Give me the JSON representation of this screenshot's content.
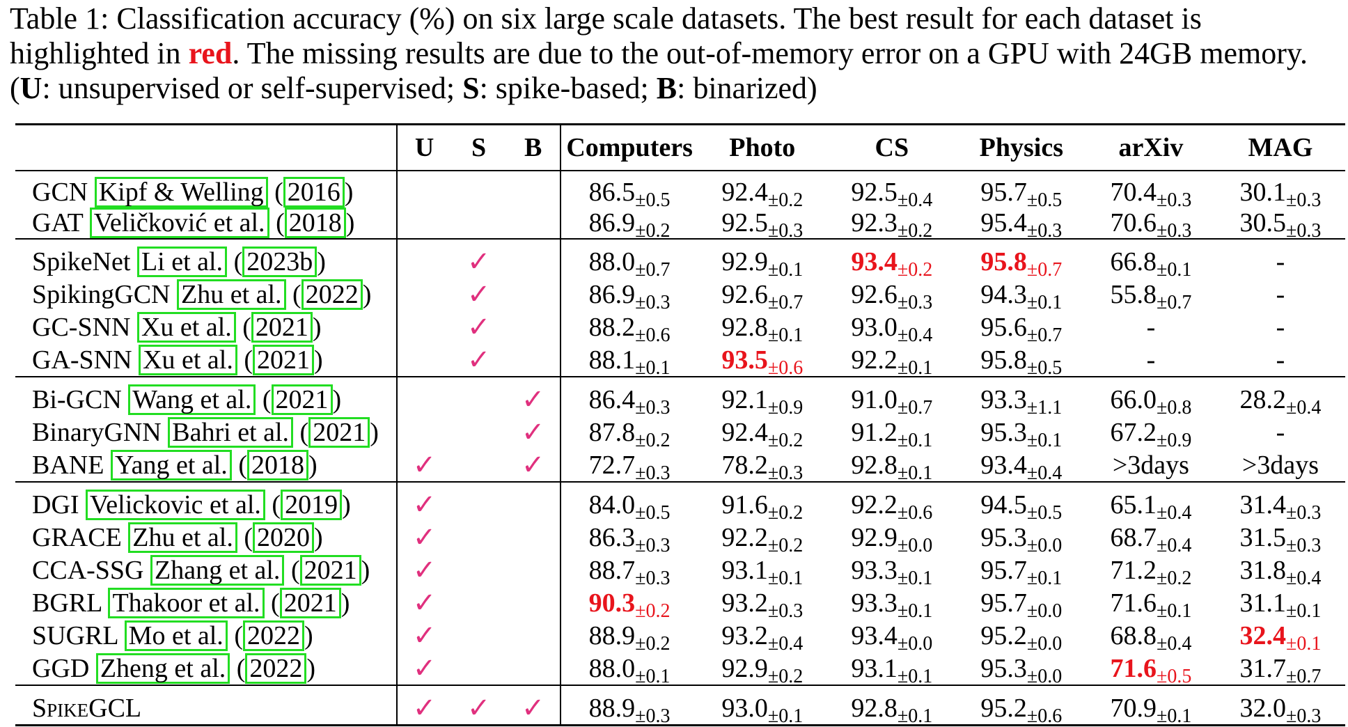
{
  "caption": {
    "part1": "Table 1: Classification accuracy (%) on six large scale datasets. The best result for each dataset is highlighted in ",
    "red_word": "red",
    "part2": ". The missing results are due to the out-of-memory error on a GPU with 24GB memory. (",
    "u_key": "U",
    "u_desc": ": unsupervised or self-supervised; ",
    "s_key": "S",
    "s_desc": ": spike-based; ",
    "b_key": "B",
    "b_desc": ": binarized)"
  },
  "table": {
    "headers": {
      "u": "U",
      "s": "S",
      "b": "B",
      "datasets": [
        "Computers",
        "Photo",
        "CS",
        "Physics",
        "arXiv",
        "MAG"
      ]
    },
    "check_symbol": "✓",
    "groups": [
      [
        {
          "name": "GCN",
          "cite_author": "Kipf & Welling",
          "cite_year": "2016",
          "u": false,
          "s": false,
          "b": false,
          "values": [
            [
              "86.5",
              "±0.5",
              false
            ],
            [
              "92.4",
              "±0.2",
              false
            ],
            [
              "92.5",
              "±0.4",
              false
            ],
            [
              "95.7",
              "±0.5",
              false
            ],
            [
              "70.4",
              "±0.3",
              false
            ],
            [
              "30.1",
              "±0.3",
              false
            ]
          ]
        },
        {
          "name": "GAT",
          "cite_author": "Veličković et al.",
          "cite_year": "2018",
          "u": false,
          "s": false,
          "b": false,
          "values": [
            [
              "86.9",
              "±0.2",
              false
            ],
            [
              "92.5",
              "±0.3",
              false
            ],
            [
              "92.3",
              "±0.2",
              false
            ],
            [
              "95.4",
              "±0.3",
              false
            ],
            [
              "70.6",
              "±0.3",
              false
            ],
            [
              "30.5",
              "±0.3",
              false
            ]
          ]
        }
      ],
      [
        {
          "name": "SpikeNet",
          "cite_author": "Li et al.",
          "cite_year": "2023b",
          "u": false,
          "s": true,
          "b": false,
          "values": [
            [
              "88.0",
              "±0.7",
              false
            ],
            [
              "92.9",
              "±0.1",
              false
            ],
            [
              "93.4",
              "±0.2",
              true
            ],
            [
              "95.8",
              "±0.7",
              true
            ],
            [
              "66.8",
              "±0.1",
              false
            ],
            [
              "-",
              "",
              false
            ]
          ]
        },
        {
          "name": "SpikingGCN",
          "cite_author": "Zhu et al.",
          "cite_year": "2022",
          "u": false,
          "s": true,
          "b": false,
          "values": [
            [
              "86.9",
              "±0.3",
              false
            ],
            [
              "92.6",
              "±0.7",
              false
            ],
            [
              "92.6",
              "±0.3",
              false
            ],
            [
              "94.3",
              "±0.1",
              false
            ],
            [
              "55.8",
              "±0.7",
              false
            ],
            [
              "-",
              "",
              false
            ]
          ]
        },
        {
          "name": "GC-SNN",
          "cite_author": "Xu et al.",
          "cite_year": "2021",
          "u": false,
          "s": true,
          "b": false,
          "values": [
            [
              "88.2",
              "±0.6",
              false
            ],
            [
              "92.8",
              "±0.1",
              false
            ],
            [
              "93.0",
              "±0.4",
              false
            ],
            [
              "95.6",
              "±0.7",
              false
            ],
            [
              "-",
              "",
              false
            ],
            [
              "-",
              "",
              false
            ]
          ]
        },
        {
          "name": "GA-SNN",
          "cite_author": "Xu et al.",
          "cite_year": "2021",
          "u": false,
          "s": true,
          "b": false,
          "values": [
            [
              "88.1",
              "±0.1",
              false
            ],
            [
              "93.5",
              "±0.6",
              true
            ],
            [
              "92.2",
              "±0.1",
              false
            ],
            [
              "95.8",
              "±0.5",
              false
            ],
            [
              "-",
              "",
              false
            ],
            [
              "-",
              "",
              false
            ]
          ]
        }
      ],
      [
        {
          "name": "Bi-GCN",
          "cite_author": "Wang et al.",
          "cite_year": "2021",
          "u": false,
          "s": false,
          "b": true,
          "values": [
            [
              "86.4",
              "±0.3",
              false
            ],
            [
              "92.1",
              "±0.9",
              false
            ],
            [
              "91.0",
              "±0.7",
              false
            ],
            [
              "93.3",
              "±1.1",
              false
            ],
            [
              "66.0",
              "±0.8",
              false
            ],
            [
              "28.2",
              "±0.4",
              false
            ]
          ]
        },
        {
          "name": "BinaryGNN",
          "cite_author": "Bahri et al.",
          "cite_year": "2021",
          "u": false,
          "s": false,
          "b": true,
          "values": [
            [
              "87.8",
              "±0.2",
              false
            ],
            [
              "92.4",
              "±0.2",
              false
            ],
            [
              "91.2",
              "±0.1",
              false
            ],
            [
              "95.3",
              "±0.1",
              false
            ],
            [
              "67.2",
              "±0.9",
              false
            ],
            [
              "-",
              "",
              false
            ]
          ]
        },
        {
          "name": "BANE",
          "cite_author": "Yang et al.",
          "cite_year": "2018",
          "u": true,
          "s": false,
          "b": true,
          "values": [
            [
              "72.7",
              "±0.3",
              false
            ],
            [
              "78.2",
              "±0.3",
              false
            ],
            [
              "92.8",
              "±0.1",
              false
            ],
            [
              "93.4",
              "±0.4",
              false
            ],
            [
              ">3days",
              "",
              false
            ],
            [
              ">3days",
              "",
              false
            ]
          ]
        }
      ],
      [
        {
          "name": "DGI",
          "cite_author": "Velickovic et al.",
          "cite_year": "2019",
          "u": true,
          "s": false,
          "b": false,
          "values": [
            [
              "84.0",
              "±0.5",
              false
            ],
            [
              "91.6",
              "±0.2",
              false
            ],
            [
              "92.2",
              "±0.6",
              false
            ],
            [
              "94.5",
              "±0.5",
              false
            ],
            [
              "65.1",
              "±0.4",
              false
            ],
            [
              "31.4",
              "±0.3",
              false
            ]
          ]
        },
        {
          "name": "GRACE",
          "cite_author": "Zhu et al.",
          "cite_year": "2020",
          "u": true,
          "s": false,
          "b": false,
          "values": [
            [
              "86.3",
              "±0.3",
              false
            ],
            [
              "92.2",
              "±0.2",
              false
            ],
            [
              "92.9",
              "±0.0",
              false
            ],
            [
              "95.3",
              "±0.0",
              false
            ],
            [
              "68.7",
              "±0.4",
              false
            ],
            [
              "31.5",
              "±0.3",
              false
            ]
          ]
        },
        {
          "name": "CCA-SSG",
          "cite_author": "Zhang et al.",
          "cite_year": "2021",
          "u": true,
          "s": false,
          "b": false,
          "values": [
            [
              "88.7",
              "±0.3",
              false
            ],
            [
              "93.1",
              "±0.1",
              false
            ],
            [
              "93.3",
              "±0.1",
              false
            ],
            [
              "95.7",
              "±0.1",
              false
            ],
            [
              "71.2",
              "±0.2",
              false
            ],
            [
              "31.8",
              "±0.4",
              false
            ]
          ]
        },
        {
          "name": "BGRL",
          "cite_author": "Thakoor et al.",
          "cite_year": "2021",
          "u": true,
          "s": false,
          "b": false,
          "values": [
            [
              "90.3",
              "±0.2",
              true
            ],
            [
              "93.2",
              "±0.3",
              false
            ],
            [
              "93.3",
              "±0.1",
              false
            ],
            [
              "95.7",
              "±0.0",
              false
            ],
            [
              "71.6",
              "±0.1",
              false
            ],
            [
              "31.1",
              "±0.1",
              false
            ]
          ]
        },
        {
          "name": "SUGRL",
          "cite_author": "Mo et al.",
          "cite_year": "2022",
          "u": true,
          "s": false,
          "b": false,
          "values": [
            [
              "88.9",
              "±0.2",
              false
            ],
            [
              "93.2",
              "±0.4",
              false
            ],
            [
              "93.4",
              "±0.0",
              false
            ],
            [
              "95.2",
              "±0.0",
              false
            ],
            [
              "68.8",
              "±0.4",
              false
            ],
            [
              "32.4",
              "±0.1",
              true
            ]
          ]
        },
        {
          "name": "GGD",
          "cite_author": "Zheng et al.",
          "cite_year": "2022",
          "u": true,
          "s": false,
          "b": false,
          "values": [
            [
              "88.0",
              "±0.1",
              false
            ],
            [
              "92.9",
              "±0.2",
              false
            ],
            [
              "93.1",
              "±0.1",
              false
            ],
            [
              "95.3",
              "±0.0",
              false
            ],
            [
              "71.6",
              "±0.5",
              true
            ],
            [
              "31.7",
              "±0.7",
              false
            ]
          ]
        }
      ],
      [
        {
          "name": "SpikeGCL",
          "smallcaps": true,
          "cite_author": "",
          "cite_year": "",
          "u": true,
          "s": true,
          "b": true,
          "values": [
            [
              "88.9",
              "±0.3",
              false
            ],
            [
              "93.0",
              "±0.1",
              false
            ],
            [
              "92.8",
              "±0.1",
              false
            ],
            [
              "95.2",
              "±0.6",
              false
            ],
            [
              "70.9",
              "±0.1",
              false
            ],
            [
              "32.0",
              "±0.3",
              false
            ]
          ]
        }
      ]
    ]
  }
}
